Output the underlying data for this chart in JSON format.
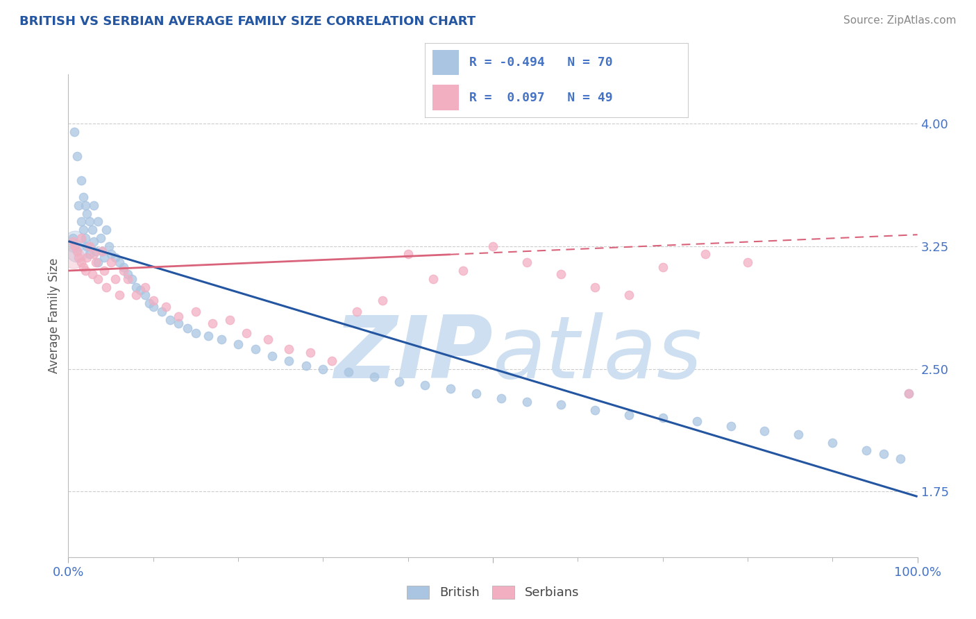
{
  "title": "BRITISH VS SERBIAN AVERAGE FAMILY SIZE CORRELATION CHART",
  "source": "Source: ZipAtlas.com",
  "ylabel": "Average Family Size",
  "yticks": [
    1.75,
    2.5,
    3.25,
    4.0
  ],
  "xlim": [
    0,
    1
  ],
  "ylim": [
    1.35,
    4.3
  ],
  "legend_british_r": "-0.494",
  "legend_british_n": "70",
  "legend_serbian_r": "0.097",
  "legend_serbian_n": "49",
  "british_color": "#aac5e2",
  "serbian_color": "#f2afc2",
  "british_line_color": "#2355a0",
  "serbian_line_color": "#d9637a",
  "watermark_color": "#cddff0",
  "title_color": "#2355a0",
  "source_color": "#888888",
  "tick_color": "#4472c4",
  "legend_val_color": "#4472c4",
  "axis_label_color": "#555555",
  "grid_color": "#cccccc",
  "background_color": "#ffffff",
  "british_line_x0": 0.0,
  "british_line_y0": 3.28,
  "british_line_x1": 1.0,
  "british_line_y1": 1.72,
  "serbian_line_x0": 0.0,
  "serbian_line_y0": 3.1,
  "serbian_line_x1": 1.0,
  "serbian_line_y1": 3.32,
  "british_x": [
    0.005,
    0.007,
    0.01,
    0.012,
    0.015,
    0.015,
    0.018,
    0.018,
    0.02,
    0.02,
    0.022,
    0.022,
    0.025,
    0.025,
    0.028,
    0.03,
    0.03,
    0.032,
    0.035,
    0.035,
    0.038,
    0.04,
    0.042,
    0.045,
    0.048,
    0.05,
    0.055,
    0.06,
    0.065,
    0.07,
    0.075,
    0.08,
    0.085,
    0.09,
    0.095,
    0.1,
    0.11,
    0.12,
    0.13,
    0.14,
    0.15,
    0.165,
    0.18,
    0.2,
    0.22,
    0.24,
    0.26,
    0.28,
    0.3,
    0.33,
    0.36,
    0.39,
    0.42,
    0.45,
    0.48,
    0.51,
    0.54,
    0.58,
    0.62,
    0.66,
    0.7,
    0.74,
    0.78,
    0.82,
    0.86,
    0.9,
    0.94,
    0.96,
    0.98,
    0.99
  ],
  "british_y": [
    3.3,
    3.95,
    3.8,
    3.5,
    3.65,
    3.4,
    3.55,
    3.35,
    3.5,
    3.3,
    3.45,
    3.25,
    3.4,
    3.2,
    3.35,
    3.5,
    3.28,
    3.22,
    3.4,
    3.15,
    3.3,
    3.22,
    3.18,
    3.35,
    3.25,
    3.2,
    3.18,
    3.15,
    3.12,
    3.08,
    3.05,
    3.0,
    2.98,
    2.95,
    2.9,
    2.88,
    2.85,
    2.8,
    2.78,
    2.75,
    2.72,
    2.7,
    2.68,
    2.65,
    2.62,
    2.58,
    2.55,
    2.52,
    2.5,
    2.48,
    2.45,
    2.42,
    2.4,
    2.38,
    2.35,
    2.32,
    2.3,
    2.28,
    2.25,
    2.22,
    2.2,
    2.18,
    2.15,
    2.12,
    2.1,
    2.05,
    2.0,
    1.98,
    1.95,
    2.35
  ],
  "serbian_x": [
    0.005,
    0.008,
    0.01,
    0.012,
    0.015,
    0.015,
    0.018,
    0.02,
    0.022,
    0.025,
    0.028,
    0.03,
    0.032,
    0.035,
    0.04,
    0.042,
    0.045,
    0.05,
    0.055,
    0.06,
    0.065,
    0.07,
    0.08,
    0.09,
    0.1,
    0.115,
    0.13,
    0.15,
    0.17,
    0.19,
    0.21,
    0.235,
    0.26,
    0.285,
    0.31,
    0.34,
    0.37,
    0.4,
    0.43,
    0.465,
    0.5,
    0.54,
    0.58,
    0.62,
    0.66,
    0.7,
    0.75,
    0.8,
    0.99
  ],
  "serbian_y": [
    3.28,
    3.25,
    3.22,
    3.18,
    3.3,
    3.15,
    3.12,
    3.1,
    3.18,
    3.25,
    3.08,
    3.2,
    3.15,
    3.05,
    3.22,
    3.1,
    3.0,
    3.15,
    3.05,
    2.95,
    3.1,
    3.05,
    2.95,
    3.0,
    2.92,
    2.88,
    2.82,
    2.85,
    2.78,
    2.8,
    2.72,
    2.68,
    2.62,
    2.6,
    2.55,
    2.85,
    2.92,
    3.2,
    3.05,
    3.1,
    3.25,
    3.15,
    3.08,
    3.0,
    2.95,
    3.12,
    3.2,
    3.15,
    2.35
  ],
  "dot_size": 80
}
